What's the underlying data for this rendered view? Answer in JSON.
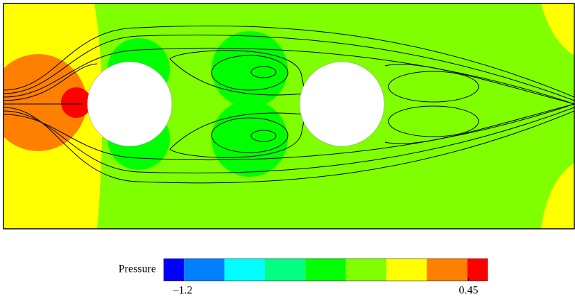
{
  "chart_data": {
    "type": "contour",
    "colorbar": {
      "label": "Pressure",
      "colors": [
        "#0000ff",
        "#0080ff",
        "#00ffff",
        "#00ff80",
        "#00ff00",
        "#80ff00",
        "#ffff00",
        "#ff8000",
        "#ff0000"
      ],
      "clim": [
        -1.31,
        0.56
      ],
      "ticks": [
        {
          "value": -1.2,
          "label": "–1.2"
        },
        0.45
      ]
    }
  }
}
